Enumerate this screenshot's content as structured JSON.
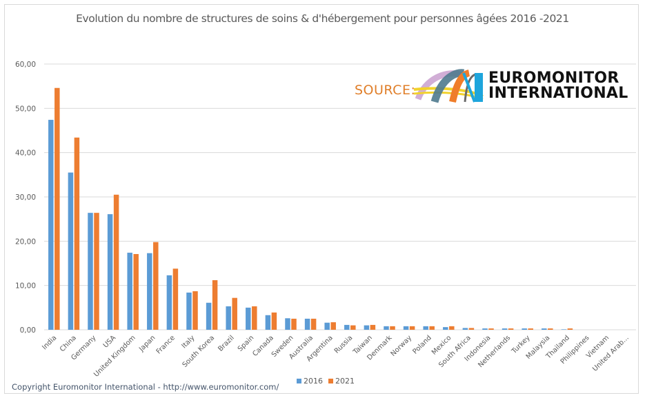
{
  "chart_data": {
    "type": "bar",
    "title": "Evolution du nombre de structures de soins & d'hébergement pour personnes âgées 2016 -2021",
    "xlabel": "",
    "ylabel": "",
    "ylim": [
      0,
      60
    ],
    "yticks": [
      "0,00",
      "10,00",
      "20,00",
      "30,00",
      "40,00",
      "50,00",
      "60,00"
    ],
    "ytick_values": [
      0,
      10,
      20,
      30,
      40,
      50,
      60
    ],
    "grid": true,
    "legend_position": "bottom",
    "categories": [
      "India",
      "China",
      "Germany",
      "USA",
      "United Kingdom",
      "Japan",
      "France",
      "Italy",
      "South Korea",
      "Brazil",
      "Spain",
      "Canada",
      "Sweden",
      "Australia",
      "Argentina",
      "Russia",
      "Taiwan",
      "Denmark",
      "Norway",
      "Poland",
      "Mexico",
      "South Africa",
      "Indonesia",
      "Netherlands",
      "Turkey",
      "Malaysia",
      "Thailand",
      "Philippines",
      "Vietnam",
      "United Arab..."
    ],
    "series": [
      {
        "name": "2016",
        "color": "#5B9BD5",
        "values": [
          47.4,
          35.5,
          26.4,
          26.1,
          17.4,
          17.3,
          12.3,
          8.4,
          6.1,
          5.3,
          5.0,
          3.3,
          2.6,
          2.5,
          1.6,
          1.1,
          1.0,
          0.8,
          0.8,
          0.8,
          0.6,
          0.4,
          0.3,
          0.3,
          0.3,
          0.3,
          0.1,
          0,
          0,
          0
        ]
      },
      {
        "name": "2021",
        "color": "#ED7D31",
        "values": [
          54.6,
          43.4,
          26.4,
          30.5,
          17.1,
          19.8,
          13.8,
          8.7,
          11.2,
          7.2,
          5.3,
          3.9,
          2.5,
          2.5,
          1.7,
          1.0,
          1.1,
          0.8,
          0.8,
          0.8,
          0.8,
          0.4,
          0.3,
          0.3,
          0.3,
          0.3,
          0.3,
          0,
          0,
          0
        ]
      }
    ]
  },
  "source": {
    "label": "SOURCE:",
    "brand_line1": "EUROMONITOR",
    "brand_line2": "INTERNATIONAL"
  },
  "legend": {
    "items": [
      {
        "label": "2016",
        "color": "#5B9BD5"
      },
      {
        "label": "2021",
        "color": "#ED7D31"
      }
    ]
  },
  "footer": {
    "copyright": "Copyright Euromonitor International - http://www.euromonitor.com/"
  }
}
